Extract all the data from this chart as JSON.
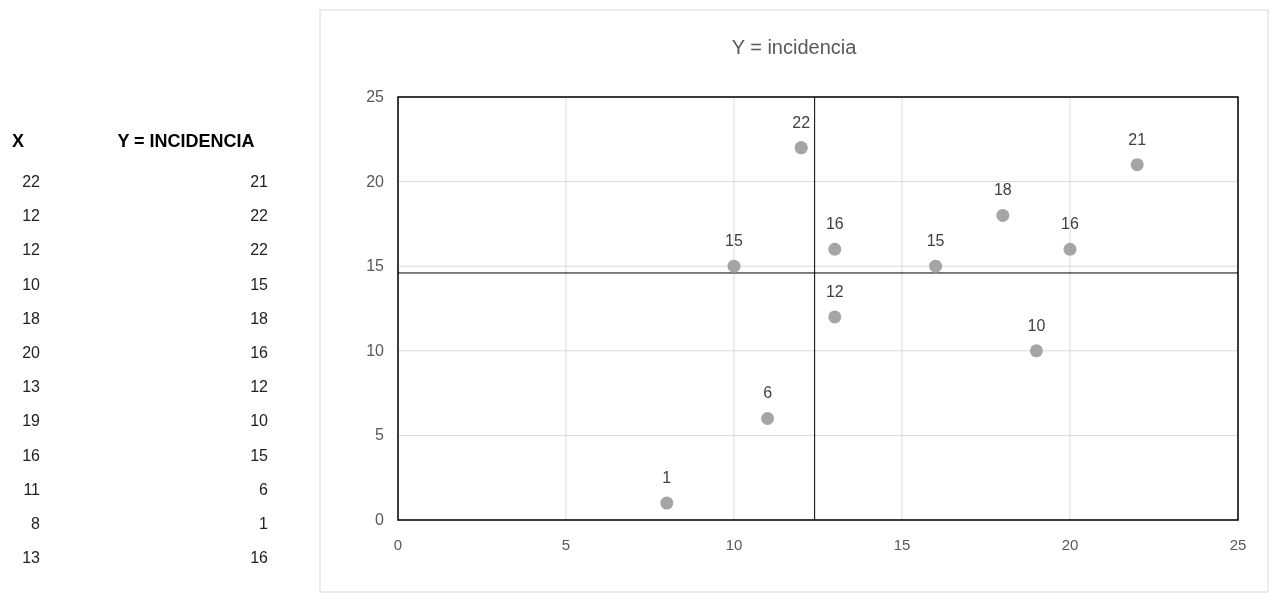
{
  "chart_data": [
    {
      "type": "other",
      "annotations": [
        "X",
        "Y = INCIDENCIA",
        "22",
        "21",
        "12",
        "22",
        "12",
        "22",
        "10",
        "15",
        "18",
        "18",
        "20",
        "16",
        "13",
        "12",
        "19",
        "10",
        "16",
        "15",
        "11",
        "6",
        "8",
        "1",
        "13",
        "16"
      ]
    },
    {
      "type": "scatter",
      "title": "Y = incidencia",
      "x": [
        22,
        12,
        12,
        10,
        18,
        20,
        13,
        19,
        16,
        11,
        8,
        13
      ],
      "values": [
        21,
        22,
        22,
        15,
        18,
        16,
        12,
        10,
        15,
        6,
        1,
        16
      ],
      "value_labels": [
        "21",
        "22",
        null,
        "15",
        "18",
        "16",
        "12",
        "10",
        "15",
        "6",
        "1",
        "16"
      ],
      "color": "#a5a5a5",
      "marker": "circle",
      "xlim": [
        0,
        25
      ],
      "xticks": [
        0,
        5,
        10,
        15,
        20,
        25
      ],
      "ylim": [
        0,
        25
      ],
      "yticks": [
        0,
        5,
        10,
        15,
        20,
        25
      ],
      "grid": true,
      "ref_lines": [
        {
          "axis": "x",
          "value": 12.4,
          "color": "#000000"
        },
        {
          "axis": "y",
          "value": 14.6,
          "color": "#000000"
        }
      ]
    }
  ]
}
